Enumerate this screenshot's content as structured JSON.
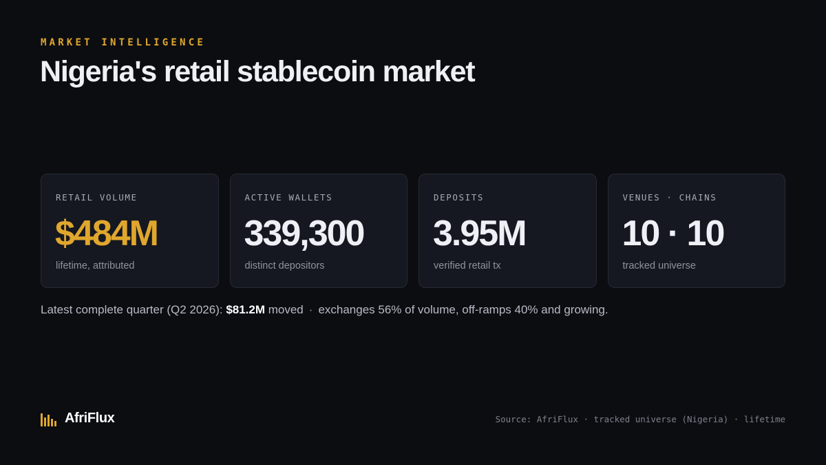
{
  "header": {
    "eyebrow": "MARKET INTELLIGENCE",
    "title": "Nigeria's retail stablecoin market"
  },
  "metrics": [
    {
      "label": "RETAIL VOLUME",
      "value": "$484M",
      "sub": "lifetime, attributed"
    },
    {
      "label": "ACTIVE WALLETS",
      "value": "339,300",
      "sub": "distinct depositors"
    },
    {
      "label": "DEPOSITS",
      "value": "3.95M",
      "sub": "verified retail tx"
    },
    {
      "label": "VENUES · CHAINS",
      "value": "10 · 10",
      "sub": "tracked universe"
    }
  ],
  "summary": {
    "prefix": "Latest complete quarter (Q2 2026): ",
    "highlight": "$81.2M",
    "moved": " moved",
    "separator": "·",
    "detail": "exchanges 56% of volume, off-ramps 40% and growing."
  },
  "footer": {
    "brand": "AfriFlux",
    "brand_icon": "bar-chart-icon",
    "source": "Source: AfriFlux · tracked universe (Nigeria) · lifetime"
  },
  "colors": {
    "background": "#0c0d11",
    "card": "#151820",
    "accent": "#e0a72e",
    "text": "#eef0f6",
    "muted": "#8e93a0"
  }
}
